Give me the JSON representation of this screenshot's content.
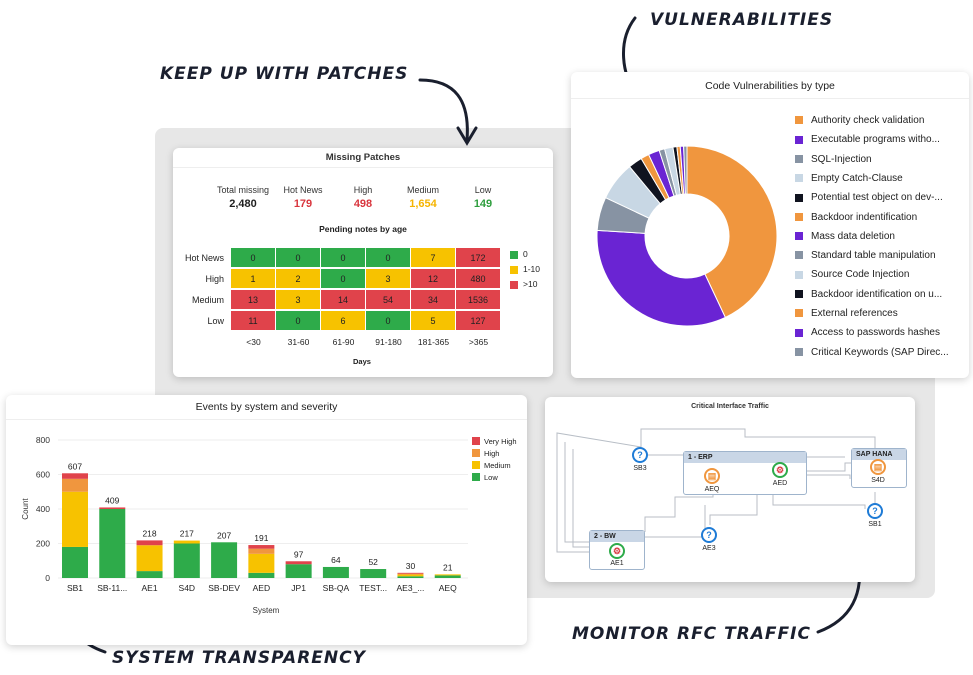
{
  "callouts": {
    "patches": "Keep up with patches",
    "vulns": "Vulnerabilities",
    "transparency": "System Transparency",
    "rfc": "Monitor RFC Traffic"
  },
  "patches": {
    "title": "Missing Patches",
    "kpis": [
      {
        "label": "Total missing",
        "value": "2,480",
        "color": "#1f1f1f"
      },
      {
        "label": "Hot News",
        "value": "179",
        "color": "#d9363e"
      },
      {
        "label": "High",
        "value": "498",
        "color": "#d9363e"
      },
      {
        "label": "Medium",
        "value": "1,654",
        "color": "#f5b400"
      },
      {
        "label": "Low",
        "value": "149",
        "color": "#2e9e3e"
      }
    ],
    "subtitle": "Pending notes by age",
    "rows": [
      "Hot News",
      "High",
      "Medium",
      "Low"
    ],
    "cols": [
      "<30",
      "31-60",
      "61-90",
      "91-180",
      "181-365",
      ">365"
    ],
    "values": [
      [
        "0",
        "0",
        "0",
        "0",
        "7",
        "172"
      ],
      [
        "1",
        "2",
        "0",
        "3",
        "12",
        "480"
      ],
      [
        "13",
        "3",
        "14",
        "54",
        "34",
        "1536"
      ],
      [
        "11",
        "0",
        "6",
        "0",
        "5",
        "127"
      ]
    ],
    "levels": [
      [
        "g",
        "g",
        "g",
        "g",
        "y",
        "r"
      ],
      [
        "y",
        "y",
        "g",
        "y",
        "r",
        "r"
      ],
      [
        "r",
        "y",
        "r",
        "r",
        "r",
        "r"
      ],
      [
        "r",
        "g",
        "y",
        "g",
        "y",
        "r"
      ]
    ],
    "xlabel": "Days",
    "legend": [
      "0",
      "1-10",
      ">10"
    ],
    "colors": {
      "g": "#2eab4a",
      "y": "#f7c200",
      "r": "#e0434b"
    }
  },
  "vulns": {
    "title": "Code Vulnerabilities by type",
    "legend": [
      {
        "label": "Authority check validation",
        "color": "#f0963e"
      },
      {
        "label": "Executable programs witho...",
        "color": "#6a24d3"
      },
      {
        "label": "SQL-Injection",
        "color": "#8793a3"
      },
      {
        "label": "Empty Catch-Clause",
        "color": "#c8d7e4"
      },
      {
        "label": "Potential test object on dev-...",
        "color": "#10131f"
      },
      {
        "label": "Backdoor indentification",
        "color": "#f0963e"
      },
      {
        "label": "Mass data deletion",
        "color": "#6a24d3"
      },
      {
        "label": "Standard table manipulation",
        "color": "#8793a3"
      },
      {
        "label": "Source Code Injection",
        "color": "#c8d7e4"
      },
      {
        "label": "Backdoor identification on u...",
        "color": "#10131f"
      },
      {
        "label": "External references",
        "color": "#f0963e"
      },
      {
        "label": "Access to passwords hashes",
        "color": "#6a24d3"
      },
      {
        "label": "Critical Keywords (SAP Direc...",
        "color": "#8793a3"
      }
    ],
    "slices": [
      {
        "color": "#f0963e",
        "value": 43
      },
      {
        "color": "#6a24d3",
        "value": 33
      },
      {
        "color": "#8793a3",
        "value": 6
      },
      {
        "color": "#c8d7e4",
        "value": 7
      },
      {
        "color": "#10131f",
        "value": 2.5
      },
      {
        "color": "#f0963e",
        "value": 1.5
      },
      {
        "color": "#6a24d3",
        "value": 2
      },
      {
        "color": "#8793a3",
        "value": 1
      },
      {
        "color": "#c8d7e4",
        "value": 1.5
      },
      {
        "color": "#10131f",
        "value": 0.7
      },
      {
        "color": "#f0963e",
        "value": 0.6
      },
      {
        "color": "#6a24d3",
        "value": 0.6
      },
      {
        "color": "#8793a3",
        "value": 0.6
      }
    ]
  },
  "events": {
    "title": "Events by system and severity",
    "ylabel": "Count",
    "xlabel": "System",
    "ticks": [
      "0",
      "200",
      "400",
      "600",
      "800"
    ],
    "ymax": 800,
    "legend": [
      {
        "label": "Very High",
        "color": "#e0434b"
      },
      {
        "label": "High",
        "color": "#f0963e"
      },
      {
        "label": "Medium",
        "color": "#f7c200"
      },
      {
        "label": "Low",
        "color": "#2eab4a"
      }
    ],
    "bars": [
      {
        "name": "SB1",
        "total": "607",
        "seg": [
          180,
          320,
          75,
          32
        ]
      },
      {
        "name": "SB-11...",
        "total": "409",
        "seg": [
          400,
          0,
          0,
          9
        ]
      },
      {
        "name": "AE1",
        "total": "218",
        "seg": [
          40,
          150,
          0,
          28
        ]
      },
      {
        "name": "S4D",
        "total": "217",
        "seg": [
          200,
          17,
          0,
          0
        ]
      },
      {
        "name": "SB-DEV",
        "total": "207",
        "seg": [
          207,
          0,
          0,
          0
        ]
      },
      {
        "name": "AED",
        "total": "191",
        "seg": [
          30,
          110,
          30,
          21
        ]
      },
      {
        "name": "JP1",
        "total": "97",
        "seg": [
          80,
          0,
          0,
          17
        ]
      },
      {
        "name": "SB-QA",
        "total": "64",
        "seg": [
          64,
          0,
          0,
          0
        ]
      },
      {
        "name": "TEST...",
        "total": "52",
        "seg": [
          52,
          0,
          0,
          0
        ]
      },
      {
        "name": "AE3_...",
        "total": "30",
        "seg": [
          10,
          10,
          5,
          5
        ]
      },
      {
        "name": "AEQ",
        "total": "21",
        "seg": [
          15,
          6,
          0,
          0
        ]
      }
    ]
  },
  "rfc": {
    "title": "Critical Interface Traffic",
    "groups": {
      "erp": "1 - ERP",
      "hana": "SAP HANA",
      "bw": "2 - BW"
    },
    "nodes": {
      "sb3": "SB3",
      "aeq": "AEQ",
      "aed": "AED",
      "s4d": "S4D",
      "sb1": "SB1",
      "ae3": "AE3",
      "ae1": "AE1"
    },
    "icons": {
      "help": "?",
      "gear": "⚙",
      "box": "▤"
    }
  }
}
